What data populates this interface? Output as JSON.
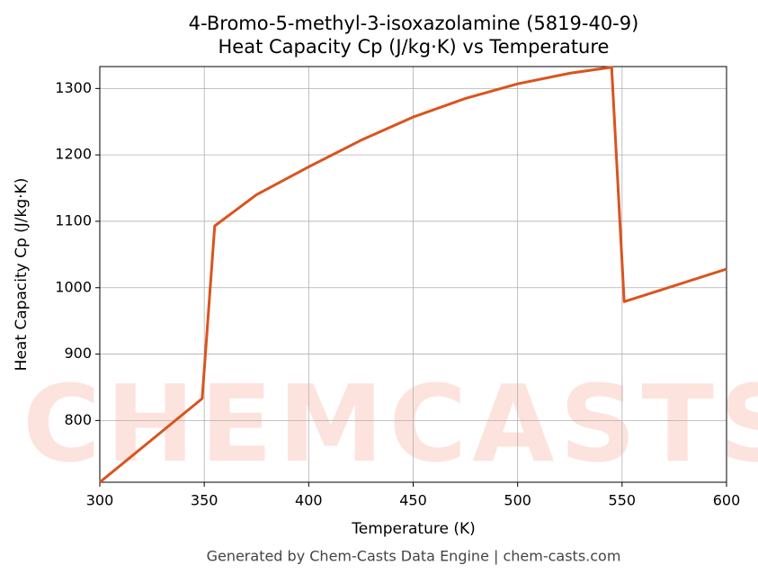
{
  "chart_data": {
    "type": "line",
    "title": "4-Bromo-5-methyl-3-isoxazolamine (5819-40-9)",
    "subtitle": "Heat Capacity Cp (J/kg·K) vs Temperature",
    "x_label": "Temperature (K)",
    "y_label": "Heat Capacity Cp (J/kg·K)",
    "footer": "Generated by Chem-Casts Data Engine | chem-casts.com",
    "watermark": "CHEMCASTS",
    "grid": true,
    "x": [
      300,
      349,
      355,
      375,
      400,
      425,
      450,
      475,
      500,
      525,
      545,
      551,
      600
    ],
    "series": [
      {
        "name": "Cp",
        "color": "#d9541e",
        "values": [
          707,
          833,
          1093,
          1140,
          1182,
          1222,
          1257,
          1285,
          1307,
          1323,
          1332,
          979,
          1028
        ]
      }
    ],
    "xlim": [
      300,
      600
    ],
    "xticks": [
      300,
      350,
      400,
      450,
      500,
      550,
      600
    ],
    "ylim": [
      707,
      1333
    ],
    "yticks": [
      800,
      900,
      1000,
      1100,
      1200,
      1300
    ]
  }
}
